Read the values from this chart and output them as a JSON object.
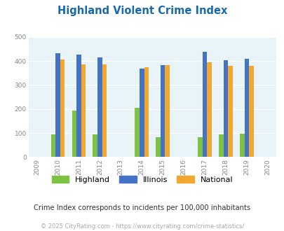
{
  "title": "Highland Violent Crime Index",
  "title_color": "#1a6aaa",
  "subtitle": "Crime Index corresponds to incidents per 100,000 inhabitants",
  "subtitle_color": "#333333",
  "footer": "© 2025 CityRating.com - https://www.cityrating.com/crime-statistics/",
  "footer_color": "#aaaaaa",
  "years": [
    2010,
    2011,
    2012,
    2014,
    2015,
    2017,
    2018,
    2019
  ],
  "x_ticks": [
    2009,
    2010,
    2011,
    2012,
    2013,
    2014,
    2015,
    2016,
    2017,
    2018,
    2019,
    2020
  ],
  "highland": [
    95,
    193,
    95,
    205,
    83,
    82,
    95,
    96
  ],
  "illinois": [
    433,
    428,
    415,
    368,
    383,
    437,
    404,
    408
  ],
  "national": [
    405,
    387,
    387,
    375,
    383,
    394,
    379,
    379
  ],
  "highland_color": "#7dc242",
  "illinois_color": "#4472c4",
  "national_color": "#f0a830",
  "bg_color": "#e8f4f8",
  "ylim": [
    0,
    500
  ],
  "yticks": [
    0,
    100,
    200,
    300,
    400,
    500
  ],
  "bar_width": 0.22,
  "legend_labels": [
    "Highland",
    "Illinois",
    "National"
  ]
}
